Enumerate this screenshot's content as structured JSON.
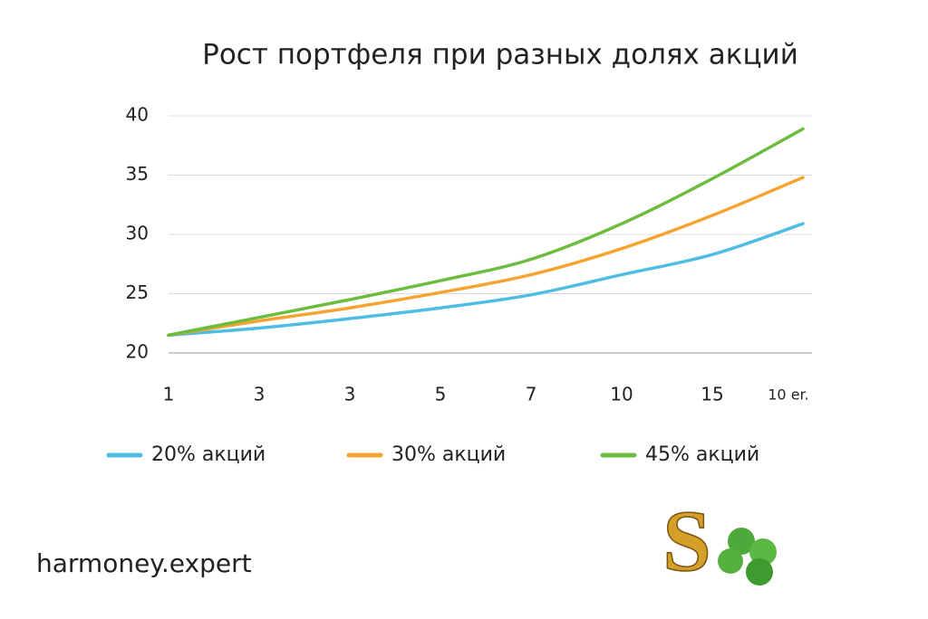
{
  "chart_data": {
    "type": "line",
    "title": "Рост портфеля при разных долях акций",
    "categories": [
      "1",
      "3",
      "3",
      "5",
      "7",
      "10",
      "15",
      "10 er."
    ],
    "series": [
      {
        "name": "20% акций",
        "color": "#4fbde3",
        "values": [
          21.5,
          22.1,
          22.9,
          23.8,
          24.9,
          26.6,
          28.3,
          30.9
        ]
      },
      {
        "name": "30% акций",
        "color": "#f5a431",
        "values": [
          21.5,
          22.7,
          23.8,
          25.1,
          26.6,
          28.8,
          31.6,
          34.8
        ]
      },
      {
        "name": "45% акций",
        "color": "#6cbd3e",
        "values": [
          21.5,
          23.0,
          24.5,
          26.1,
          27.9,
          30.9,
          34.7,
          38.9
        ]
      }
    ],
    "ylim": [
      20,
      40
    ],
    "yticks": [
      20,
      25,
      30,
      35,
      40
    ],
    "grid": true,
    "legend": "bottom"
  },
  "footer": "harmoney.expert",
  "logo": "S"
}
